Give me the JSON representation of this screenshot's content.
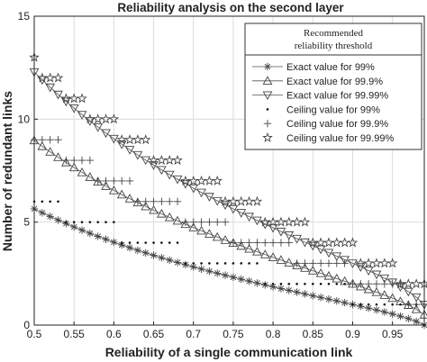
{
  "chart_data": {
    "type": "scatter",
    "title": "Reliability analysis on the second layer",
    "xlabel": "Reliability of a single communication link",
    "ylabel": "Number of redundant links",
    "xlim": [
      0.5,
      0.99
    ],
    "ylim": [
      0,
      15
    ],
    "xticks": [
      0.5,
      0.55,
      0.6,
      0.65,
      0.7,
      0.75,
      0.8,
      0.85,
      0.9,
      0.95
    ],
    "yticks": [
      0,
      5,
      10,
      15
    ],
    "grid": true,
    "legend": {
      "placement": "top-right",
      "title": [
        "Recommended",
        "reliability threshold"
      ]
    },
    "x_step": 0.01,
    "x_start": 0.5,
    "series": [
      {
        "name": "Exact value for 99%",
        "marker": "asterisk",
        "line": true,
        "target": 0.99,
        "ceiling": false
      },
      {
        "name": "Exact value for 99.9%",
        "marker": "triangle-up",
        "line": true,
        "target": 0.999,
        "ceiling": false
      },
      {
        "name": "Exact value for 99.99%",
        "marker": "triangle-down",
        "line": true,
        "target": 0.9999,
        "ceiling": false
      },
      {
        "name": "Ceiling value for 99%",
        "marker": "dot",
        "line": false,
        "target": 0.99,
        "ceiling": true
      },
      {
        "name": "Ceiling value for 99.9%",
        "marker": "plus",
        "line": false,
        "target": 0.999,
        "ceiling": true
      },
      {
        "name": "Ceiling value for 99.99%",
        "marker": "star",
        "line": false,
        "target": 0.9999,
        "ceiling": true
      }
    ]
  }
}
